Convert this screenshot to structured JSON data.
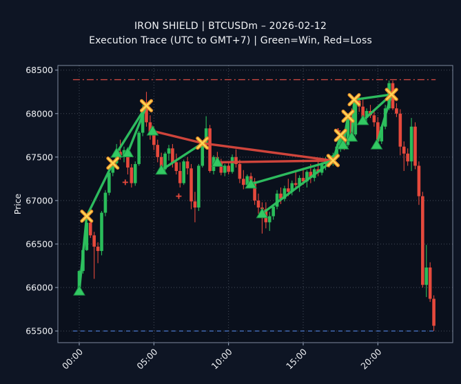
{
  "title": "IRON SHIELD | BTCUSDm – 2026-02-12",
  "subtitle": "Execution Trace (UTC to GMT+7) | Green=Win, Red=Loss",
  "colors": {
    "figure_bg": "#0e1524",
    "plot_bg": "#0a101c",
    "grid": "#c9d2e0",
    "spine": "#9aa8bf",
    "text": "#f1f3f6",
    "up": "#2abd5a",
    "down": "#e6493c",
    "win": "#2fc261",
    "loss": "#d8473d",
    "marker_fill": "#33c963",
    "marker_edge": "#1d9447",
    "x_outer": "#e88f2a",
    "x_inner": "#ffd957",
    "high_line": "#d84b44",
    "low_line": "#4f7fd9",
    "cross": "#e6493c"
  },
  "y_axis": {
    "label": "Price",
    "ticks": [
      {
        "value": 65500,
        "label": "65500"
      },
      {
        "value": 66000,
        "label": "66000"
      },
      {
        "value": 66500,
        "label": "66500"
      },
      {
        "value": 67000,
        "label": "67000"
      },
      {
        "value": 67500,
        "label": "67500"
      },
      {
        "value": 68000,
        "label": "68000"
      },
      {
        "value": 68500,
        "label": "68500"
      }
    ]
  },
  "x_axis": {
    "ticks": [
      {
        "hour": 0,
        "label": "00:00"
      },
      {
        "hour": 5,
        "label": "05:00"
      },
      {
        "hour": 10,
        "label": "10:00"
      },
      {
        "hour": 15,
        "label": "15:00"
      },
      {
        "hour": 20,
        "label": "20:00"
      }
    ]
  },
  "chart_data": {
    "type": "candlestick+trades",
    "candle_interval_min": 15,
    "y_range": [
      65370,
      68550
    ],
    "x_range_hours": [
      -1.43,
      25.0
    ],
    "grid": true,
    "ref_lines": [
      {
        "name": "session-high",
        "price": 68390,
        "style": "dashdot",
        "color_key": "high_line",
        "x_start_hour": -0.42,
        "x_end_hour": 23.87
      },
      {
        "name": "session-low",
        "price": 65500,
        "style": "dashed",
        "color_key": "low_line",
        "x_start_hour": -0.42,
        "x_end_hour": 23.87
      }
    ],
    "candles": [
      [
        "00:00",
        65980,
        66200,
        65950,
        66190
      ],
      [
        "00:15",
        66190,
        66460,
        66160,
        66430
      ],
      [
        "00:30",
        66430,
        66800,
        66420,
        66745
      ],
      [
        "00:45",
        66745,
        66790,
        66570,
        66600
      ],
      [
        "01:00",
        66600,
        66640,
        66100,
        66470
      ],
      [
        "01:15",
        66470,
        66520,
        66280,
        66420
      ],
      [
        "01:30",
        66420,
        66880,
        66370,
        66860
      ],
      [
        "01:45",
        66860,
        67120,
        66820,
        67090
      ],
      [
        "02:00",
        67090,
        67360,
        67060,
        67320
      ],
      [
        "02:15",
        67320,
        67450,
        67280,
        67430
      ],
      [
        "02:30",
        67430,
        67650,
        67380,
        67560
      ],
      [
        "02:45",
        67560,
        67700,
        67470,
        67520
      ],
      [
        "03:00",
        67520,
        67620,
        67440,
        67580
      ],
      [
        "03:15",
        67580,
        67600,
        67300,
        67380
      ],
      [
        "03:30",
        67380,
        67420,
        67150,
        67200
      ],
      [
        "03:45",
        67200,
        67450,
        67170,
        67420
      ],
      [
        "04:00",
        67420,
        67800,
        67400,
        67780
      ],
      [
        "04:15",
        67780,
        68100,
        67740,
        68060
      ],
      [
        "04:30",
        68060,
        68250,
        67850,
        67900
      ],
      [
        "04:45",
        67900,
        67980,
        67700,
        67780
      ],
      [
        "05:00",
        67780,
        67850,
        67580,
        67640
      ],
      [
        "05:15",
        67640,
        67700,
        67440,
        67500
      ],
      [
        "05:30",
        67500,
        67550,
        67300,
        67360
      ],
      [
        "05:45",
        67360,
        67560,
        67330,
        67540
      ],
      [
        "06:00",
        67540,
        67640,
        67460,
        67600
      ],
      [
        "06:15",
        67600,
        67650,
        67380,
        67440
      ],
      [
        "06:30",
        67440,
        67540,
        67300,
        67340
      ],
      [
        "06:45",
        67340,
        67440,
        67150,
        67200
      ],
      [
        "07:00",
        67200,
        67470,
        67180,
        67450
      ],
      [
        "07:15",
        67450,
        67500,
        67300,
        67370
      ],
      [
        "07:30",
        67370,
        67420,
        66900,
        66990
      ],
      [
        "07:45",
        66990,
        67100,
        66750,
        66920
      ],
      [
        "08:00",
        66920,
        67420,
        66880,
        67400
      ],
      [
        "08:15",
        67400,
        67680,
        67380,
        67660
      ],
      [
        "08:30",
        67660,
        67970,
        67640,
        67830
      ],
      [
        "08:45",
        67830,
        67870,
        67320,
        67340
      ],
      [
        "09:00",
        67340,
        67520,
        67300,
        67500
      ],
      [
        "09:15",
        67500,
        67560,
        67400,
        67450
      ],
      [
        "09:30",
        67450,
        67480,
        67290,
        67320
      ],
      [
        "09:45",
        67320,
        67420,
        67280,
        67400
      ],
      [
        "10:00",
        67400,
        67450,
        67300,
        67330
      ],
      [
        "10:15",
        67330,
        67530,
        67310,
        67500
      ],
      [
        "10:30",
        67500,
        67590,
        67380,
        67420
      ],
      [
        "10:45",
        67420,
        67470,
        67200,
        67250
      ],
      [
        "11:00",
        67250,
        67350,
        67130,
        67180
      ],
      [
        "11:15",
        67180,
        67300,
        67150,
        67280
      ],
      [
        "11:30",
        67280,
        67320,
        67150,
        67220
      ],
      [
        "11:45",
        67220,
        67260,
        66950,
        67000
      ],
      [
        "12:00",
        67000,
        67080,
        66850,
        66920
      ],
      [
        "12:15",
        66920,
        66980,
        66620,
        66900
      ],
      [
        "12:30",
        66900,
        66980,
        66680,
        66750
      ],
      [
        "12:45",
        66750,
        66870,
        66650,
        66820
      ],
      [
        "13:00",
        66820,
        66960,
        66780,
        66930
      ],
      [
        "13:15",
        66930,
        67120,
        66900,
        67080
      ],
      [
        "13:30",
        67080,
        67150,
        66960,
        67020
      ],
      [
        "13:45",
        67020,
        67170,
        66990,
        67140
      ],
      [
        "14:00",
        67140,
        67250,
        67050,
        67100
      ],
      [
        "14:15",
        67100,
        67230,
        67060,
        67200
      ],
      [
        "14:30",
        67200,
        67330,
        67130,
        67180
      ],
      [
        "14:45",
        67180,
        67290,
        67100,
        67260
      ],
      [
        "15:00",
        67260,
        67360,
        67180,
        67220
      ],
      [
        "15:15",
        67220,
        67350,
        67150,
        67330
      ],
      [
        "15:30",
        67330,
        67420,
        67200,
        67260
      ],
      [
        "15:45",
        67260,
        67380,
        67220,
        67360
      ],
      [
        "16:00",
        67360,
        67450,
        67280,
        67320
      ],
      [
        "16:15",
        67320,
        67440,
        67290,
        67420
      ],
      [
        "16:30",
        67420,
        67500,
        67350,
        67470
      ],
      [
        "16:45",
        67470,
        67520,
        67380,
        67430
      ],
      [
        "17:00",
        67430,
        67550,
        67400,
        67520
      ],
      [
        "17:15",
        67520,
        67650,
        67480,
        67620
      ],
      [
        "17:30",
        67620,
        67780,
        67560,
        67750
      ],
      [
        "17:45",
        67750,
        67820,
        67580,
        67640
      ],
      [
        "18:00",
        67640,
        67990,
        67620,
        67960
      ],
      [
        "18:15",
        67960,
        68060,
        67700,
        67760
      ],
      [
        "18:30",
        67760,
        68180,
        67740,
        68150
      ],
      [
        "18:45",
        68150,
        68190,
        68020,
        68080
      ],
      [
        "19:00",
        68080,
        68160,
        67890,
        67950
      ],
      [
        "19:15",
        67950,
        68060,
        67900,
        68030
      ],
      [
        "19:30",
        68030,
        68100,
        67950,
        67980
      ],
      [
        "19:45",
        67980,
        68050,
        67850,
        67900
      ],
      [
        "20:00",
        67900,
        67960,
        67620,
        67680
      ],
      [
        "20:15",
        67680,
        67870,
        67650,
        67850
      ],
      [
        "20:30",
        67850,
        68100,
        67820,
        68060
      ],
      [
        "20:45",
        68060,
        68380,
        68040,
        68350
      ],
      [
        "21:00",
        68350,
        68380,
        68040,
        68060
      ],
      [
        "21:15",
        68060,
        68120,
        67960,
        68000
      ],
      [
        "21:30",
        68000,
        68050,
        67520,
        67620
      ],
      [
        "21:45",
        67620,
        67680,
        67340,
        67540
      ],
      [
        "22:00",
        67540,
        67600,
        67400,
        67450
      ],
      [
        "22:15",
        67450,
        67950,
        67340,
        67850
      ],
      [
        "22:30",
        67850,
        67900,
        67360,
        67400
      ],
      [
        "22:45",
        67400,
        67450,
        66950,
        67050
      ],
      [
        "23:00",
        67050,
        67100,
        66000,
        66030
      ],
      [
        "23:15",
        66030,
        66490,
        65890,
        66230
      ],
      [
        "23:30",
        66230,
        66290,
        65835,
        65870
      ],
      [
        "23:45",
        65870,
        65910,
        65500,
        65560
      ]
    ],
    "trades": [
      {
        "entry": "00:00",
        "entry_price": 65960,
        "exit": "00:30",
        "exit_price": 66820,
        "result": "win",
        "show_entry": true
      },
      {
        "entry": "00:30",
        "entry_price": 66820,
        "exit": "02:15",
        "exit_price": 67430,
        "result": "win",
        "show_entry": false
      },
      {
        "entry": "02:30",
        "entry_price": 67545,
        "exit": "04:30",
        "exit_price": 68090,
        "result": "win",
        "show_entry": true
      },
      {
        "entry": "03:15",
        "entry_price": 67550,
        "exit": "04:30",
        "exit_price": 68090,
        "result": "win",
        "show_entry": true
      },
      {
        "entry": "04:55",
        "entry_price": 67800,
        "exit": "08:15",
        "exit_price": 67660,
        "result": "loss",
        "show_entry": true
      },
      {
        "entry": "05:30",
        "entry_price": 67350,
        "exit": "08:15",
        "exit_price": 67660,
        "result": "win",
        "show_entry": true
      },
      {
        "entry": "08:15",
        "entry_price": 67660,
        "exit": "17:00",
        "exit_price": 67460,
        "result": "loss",
        "show_entry": false
      },
      {
        "entry": "09:15",
        "entry_price": 67440,
        "exit": "17:00",
        "exit_price": 67460,
        "result": "loss",
        "show_entry": true
      },
      {
        "entry": "11:30",
        "entry_price": 67190,
        "exit": "17:00",
        "exit_price": 67460,
        "result": "win",
        "show_entry": true
      },
      {
        "entry": "12:15",
        "entry_price": 66850,
        "exit": "17:00",
        "exit_price": 67460,
        "result": "win",
        "show_entry": true
      },
      {
        "entry": "17:00",
        "entry_price": 67460,
        "exit": "17:30",
        "exit_price": 67750,
        "result": "win",
        "show_entry": false
      },
      {
        "entry": "17:40",
        "entry_price": 67640,
        "exit": "18:00",
        "exit_price": 67970,
        "result": "win",
        "show_entry": true
      },
      {
        "entry": "18:15",
        "entry_price": 67730,
        "exit": "18:25",
        "exit_price": 68160,
        "result": "win",
        "show_entry": true
      },
      {
        "entry": "18:25",
        "entry_price": 68160,
        "exit": "20:55",
        "exit_price": 68220,
        "result": "win",
        "show_entry": false
      },
      {
        "entry": "19:00",
        "entry_price": 67920,
        "exit": "20:55",
        "exit_price": 68220,
        "result": "win",
        "show_entry": true
      },
      {
        "entry": "19:55",
        "entry_price": 67640,
        "exit": "20:55",
        "exit_price": 68220,
        "result": "win",
        "show_entry": true
      }
    ],
    "cross_markers": [
      {
        "time": "03:05",
        "price": 67210
      },
      {
        "time": "06:40",
        "price": 67050
      },
      {
        "time": "17:20",
        "price": 67800
      }
    ]
  }
}
